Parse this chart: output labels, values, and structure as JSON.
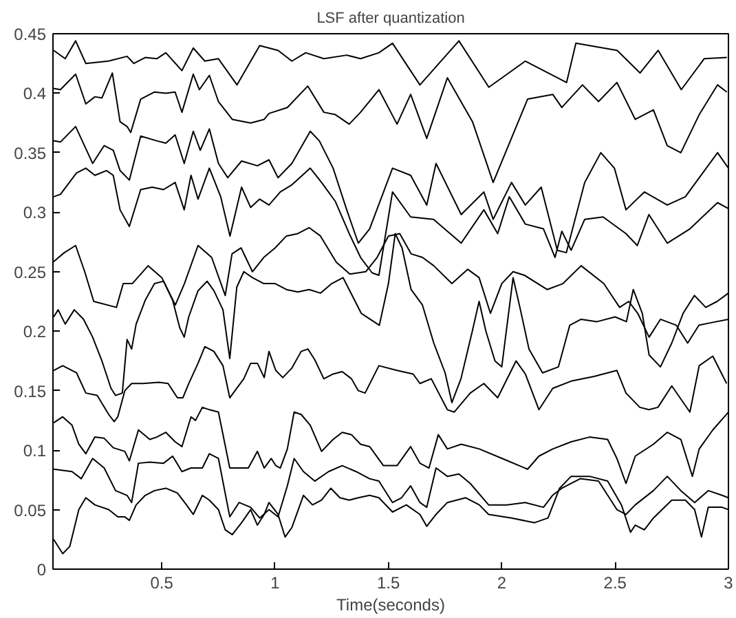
{
  "chart_data": {
    "type": "line",
    "title": "LSF after quantization",
    "xlabel": "Time(seconds)",
    "xlim": [
      0.02,
      3
    ],
    "ylim": [
      0,
      0.45
    ],
    "xticks": [
      0.5,
      1,
      1.5,
      2,
      2.5,
      3
    ],
    "yticks": [
      0,
      0.05,
      0.1,
      0.15,
      0.2,
      0.25,
      0.3,
      0.35,
      0.4,
      0.45
    ],
    "grid": false,
    "marker": "none",
    "line_style": "solid",
    "series": [
      {
        "color": "#000000",
        "x": [
          0.023,
          0.074,
          0.12,
          0.165,
          0.265,
          0.347,
          0.377,
          0.427,
          0.478,
          0.518,
          0.589,
          0.639,
          0.69,
          0.75,
          0.832,
          0.932,
          1.013,
          1.074,
          1.135,
          1.215,
          1.316,
          1.377,
          1.458,
          1.518,
          1.639,
          1.811,
          1.943,
          2.104,
          2.286,
          2.327,
          2.509,
          2.61,
          2.69,
          2.792,
          2.893,
          2.993
        ],
        "values": [
          0.436,
          0.429,
          0.444,
          0.425,
          0.427,
          0.431,
          0.425,
          0.43,
          0.429,
          0.434,
          0.419,
          0.438,
          0.427,
          0.429,
          0.407,
          0.44,
          0.436,
          0.427,
          0.434,
          0.429,
          0.432,
          0.429,
          0.434,
          0.442,
          0.407,
          0.444,
          0.405,
          0.427,
          0.409,
          0.442,
          0.436,
          0.417,
          0.436,
          0.403,
          0.429,
          0.43
        ]
      },
      {
        "color": "#000000",
        "x": [
          0.023,
          0.053,
          0.12,
          0.165,
          0.205,
          0.236,
          0.282,
          0.316,
          0.347,
          0.363,
          0.407,
          0.468,
          0.518,
          0.559,
          0.589,
          0.639,
          0.666,
          0.71,
          0.75,
          0.811,
          0.892,
          0.952,
          0.973,
          1.054,
          1.144,
          1.215,
          1.266,
          1.327,
          1.377,
          1.458,
          1.538,
          1.598,
          1.669,
          1.76,
          1.871,
          1.962,
          2.114,
          2.225,
          2.265,
          2.356,
          2.427,
          2.508,
          2.589,
          2.669,
          2.73,
          2.79,
          2.871,
          2.952,
          2.993
        ],
        "values": [
          0.404,
          0.403,
          0.416,
          0.391,
          0.397,
          0.396,
          0.417,
          0.376,
          0.372,
          0.367,
          0.395,
          0.401,
          0.4,
          0.401,
          0.384,
          0.416,
          0.403,
          0.415,
          0.393,
          0.378,
          0.375,
          0.378,
          0.383,
          0.388,
          0.406,
          0.384,
          0.382,
          0.374,
          0.384,
          0.403,
          0.374,
          0.399,
          0.362,
          0.413,
          0.376,
          0.325,
          0.395,
          0.399,
          0.388,
          0.407,
          0.393,
          0.409,
          0.378,
          0.386,
          0.356,
          0.35,
          0.382,
          0.407,
          0.401
        ]
      },
      {
        "color": "#000000",
        "x": [
          0.023,
          0.053,
          0.12,
          0.195,
          0.246,
          0.286,
          0.316,
          0.357,
          0.407,
          0.478,
          0.518,
          0.559,
          0.599,
          0.639,
          0.67,
          0.71,
          0.75,
          0.791,
          0.852,
          0.922,
          0.973,
          1.013,
          1.074,
          1.155,
          1.195,
          1.256,
          1.316,
          1.367,
          1.417,
          1.518,
          1.598,
          1.669,
          1.71,
          1.821,
          1.921,
          1.962,
          2.043,
          2.104,
          2.174,
          2.245,
          2.285,
          2.366,
          2.437,
          2.497,
          2.548,
          2.629,
          2.73,
          2.81,
          2.952,
          3.0
        ],
        "values": [
          0.36,
          0.359,
          0.372,
          0.341,
          0.356,
          0.352,
          0.335,
          0.327,
          0.364,
          0.36,
          0.358,
          0.365,
          0.341,
          0.368,
          0.352,
          0.37,
          0.341,
          0.329,
          0.343,
          0.339,
          0.344,
          0.329,
          0.341,
          0.368,
          0.36,
          0.337,
          0.302,
          0.274,
          0.286,
          0.337,
          0.331,
          0.306,
          0.341,
          0.298,
          0.317,
          0.294,
          0.325,
          0.306,
          0.321,
          0.268,
          0.266,
          0.325,
          0.35,
          0.337,
          0.302,
          0.317,
          0.306,
          0.313,
          0.35,
          0.337
        ]
      },
      {
        "color": "#000000",
        "x": [
          0.023,
          0.053,
          0.124,
          0.165,
          0.205,
          0.256,
          0.286,
          0.316,
          0.357,
          0.407,
          0.458,
          0.508,
          0.559,
          0.599,
          0.629,
          0.66,
          0.71,
          0.76,
          0.801,
          0.852,
          0.892,
          0.932,
          0.973,
          1.023,
          1.074,
          1.155,
          1.205,
          1.266,
          1.327,
          1.377,
          1.428,
          1.458,
          1.518,
          1.598,
          1.699,
          1.821,
          1.921,
          1.982,
          2.033,
          2.104,
          2.184,
          2.235,
          2.265,
          2.306,
          2.366,
          2.447,
          2.548,
          2.598,
          2.649,
          2.73,
          2.83,
          2.952,
          3.0
        ],
        "values": [
          0.313,
          0.315,
          0.333,
          0.337,
          0.331,
          0.335,
          0.331,
          0.302,
          0.288,
          0.319,
          0.321,
          0.319,
          0.325,
          0.302,
          0.331,
          0.311,
          0.337,
          0.313,
          0.28,
          0.321,
          0.304,
          0.311,
          0.306,
          0.317,
          0.323,
          0.337,
          0.325,
          0.309,
          0.282,
          0.262,
          0.249,
          0.247,
          0.317,
          0.296,
          0.294,
          0.274,
          0.302,
          0.282,
          0.313,
          0.29,
          0.286,
          0.262,
          0.284,
          0.268,
          0.294,
          0.296,
          0.282,
          0.272,
          0.298,
          0.274,
          0.286,
          0.308,
          0.303
        ]
      },
      {
        "color": "#000000",
        "x": [
          0.02,
          0.07,
          0.12,
          0.16,
          0.2,
          0.3,
          0.33,
          0.37,
          0.44,
          0.5,
          0.56,
          0.6,
          0.66,
          0.72,
          0.78,
          0.81,
          0.85,
          0.9,
          0.95,
          1.0,
          1.05,
          1.1,
          1.15,
          1.2,
          1.27,
          1.33,
          1.4,
          1.45,
          1.5,
          1.55,
          1.6,
          1.65,
          1.7,
          1.78,
          1.85,
          1.9,
          1.95,
          2.0,
          2.05,
          2.1,
          2.2,
          2.27,
          2.35,
          2.45,
          2.52,
          2.56,
          2.6,
          2.65,
          2.7,
          2.77,
          2.82,
          2.87,
          2.92,
          3.0
        ],
        "values": [
          0.258,
          0.266,
          0.272,
          0.25,
          0.225,
          0.22,
          0.24,
          0.24,
          0.255,
          0.245,
          0.222,
          0.24,
          0.272,
          0.262,
          0.23,
          0.265,
          0.27,
          0.25,
          0.262,
          0.27,
          0.28,
          0.282,
          0.287,
          0.28,
          0.258,
          0.248,
          0.25,
          0.262,
          0.28,
          0.282,
          0.265,
          0.262,
          0.255,
          0.24,
          0.252,
          0.245,
          0.215,
          0.24,
          0.25,
          0.247,
          0.235,
          0.24,
          0.255,
          0.24,
          0.22,
          0.225,
          0.215,
          0.195,
          0.21,
          0.205,
          0.19,
          0.205,
          0.207,
          0.21
        ]
      },
      {
        "color": "#000000",
        "x": [
          0.023,
          0.043,
          0.074,
          0.114,
          0.155,
          0.195,
          0.236,
          0.276,
          0.296,
          0.326,
          0.347,
          0.367,
          0.387,
          0.427,
          0.468,
          0.508,
          0.548,
          0.579,
          0.599,
          0.619,
          0.66,
          0.7,
          0.73,
          0.77,
          0.8,
          0.831,
          0.862,
          0.9,
          0.95,
          1.0,
          1.05,
          1.1,
          1.15,
          1.2,
          1.25,
          1.3,
          1.38,
          1.46,
          1.5,
          1.53,
          1.56,
          1.6,
          1.65,
          1.7,
          1.75,
          1.78,
          1.82,
          1.87,
          1.9,
          1.93,
          1.97,
          2.0,
          2.05,
          2.08,
          2.12,
          2.18,
          2.25,
          2.3,
          2.35,
          2.42,
          2.5,
          2.55,
          2.58,
          2.62,
          2.65,
          2.7,
          2.75,
          2.8,
          2.85,
          2.9,
          2.95,
          3.0
        ],
        "values": [
          0.212,
          0.218,
          0.206,
          0.218,
          0.21,
          0.195,
          0.175,
          0.152,
          0.146,
          0.148,
          0.193,
          0.185,
          0.206,
          0.226,
          0.24,
          0.242,
          0.226,
          0.203,
          0.195,
          0.212,
          0.234,
          0.242,
          0.234,
          0.218,
          0.177,
          0.237,
          0.25,
          0.245,
          0.24,
          0.24,
          0.235,
          0.233,
          0.235,
          0.232,
          0.24,
          0.245,
          0.215,
          0.205,
          0.24,
          0.282,
          0.27,
          0.235,
          0.222,
          0.19,
          0.165,
          0.14,
          0.16,
          0.2,
          0.225,
          0.2,
          0.175,
          0.17,
          0.245,
          0.22,
          0.185,
          0.165,
          0.17,
          0.205,
          0.21,
          0.208,
          0.212,
          0.208,
          0.235,
          0.215,
          0.18,
          0.17,
          0.19,
          0.215,
          0.23,
          0.22,
          0.225,
          0.232
        ]
      },
      {
        "color": "#000000",
        "x": [
          0.023,
          0.063,
          0.104,
          0.124,
          0.165,
          0.215,
          0.266,
          0.29,
          0.306,
          0.337,
          0.367,
          0.417,
          0.488,
          0.528,
          0.569,
          0.593,
          0.619,
          0.66,
          0.69,
          0.73,
          0.77,
          0.8,
          0.831,
          0.862,
          0.892,
          0.922,
          0.952,
          0.973,
          1.003,
          1.034,
          1.074,
          1.115,
          1.145,
          1.175,
          1.215,
          1.256,
          1.296,
          1.337,
          1.367,
          1.397,
          1.458,
          1.538,
          1.609,
          1.639,
          1.689,
          1.76,
          1.79,
          1.861,
          1.921,
          1.982,
          2.063,
          2.104,
          2.164,
          2.225,
          2.306,
          2.407,
          2.508,
          2.548,
          2.609,
          2.649,
          2.689,
          2.75,
          2.83,
          2.871,
          2.931,
          2.992
        ],
        "values": [
          0.167,
          0.171,
          0.167,
          0.165,
          0.148,
          0.146,
          0.13,
          0.124,
          0.128,
          0.15,
          0.156,
          0.156,
          0.157,
          0.156,
          0.144,
          0.144,
          0.156,
          0.173,
          0.187,
          0.183,
          0.171,
          0.144,
          0.152,
          0.16,
          0.173,
          0.173,
          0.161,
          0.183,
          0.167,
          0.161,
          0.169,
          0.183,
          0.185,
          0.176,
          0.16,
          0.164,
          0.166,
          0.16,
          0.15,
          0.148,
          0.171,
          0.167,
          0.164,
          0.156,
          0.16,
          0.134,
          0.132,
          0.148,
          0.156,
          0.144,
          0.175,
          0.164,
          0.134,
          0.152,
          0.158,
          0.162,
          0.167,
          0.148,
          0.136,
          0.134,
          0.136,
          0.154,
          0.132,
          0.171,
          0.179,
          0.156
        ]
      },
      {
        "color": "#000000",
        "x": [
          0.023,
          0.063,
          0.104,
          0.134,
          0.165,
          0.205,
          0.246,
          0.286,
          0.337,
          0.357,
          0.397,
          0.447,
          0.478,
          0.518,
          0.559,
          0.589,
          0.629,
          0.649,
          0.679,
          0.71,
          0.75,
          0.8,
          0.852,
          0.882,
          0.922,
          0.952,
          0.983,
          1.003,
          1.023,
          1.054,
          1.084,
          1.115,
          1.155,
          1.205,
          1.256,
          1.296,
          1.337,
          1.377,
          1.417,
          1.478,
          1.538,
          1.598,
          1.639,
          1.679,
          1.72,
          1.76,
          1.821,
          1.901,
          2.002,
          2.114,
          2.164,
          2.225,
          2.306,
          2.387,
          2.467,
          2.508,
          2.548,
          2.589,
          2.669,
          2.73,
          2.79,
          2.841,
          2.871,
          2.931,
          3.0
        ],
        "values": [
          0.123,
          0.128,
          0.121,
          0.105,
          0.097,
          0.111,
          0.11,
          0.102,
          0.099,
          0.091,
          0.117,
          0.109,
          0.111,
          0.115,
          0.107,
          0.103,
          0.128,
          0.125,
          0.136,
          0.134,
          0.132,
          0.085,
          0.085,
          0.085,
          0.099,
          0.085,
          0.093,
          0.087,
          0.085,
          0.101,
          0.132,
          0.13,
          0.121,
          0.099,
          0.109,
          0.115,
          0.113,
          0.105,
          0.103,
          0.087,
          0.087,
          0.103,
          0.089,
          0.085,
          0.113,
          0.101,
          0.105,
          0.101,
          0.093,
          0.084,
          0.095,
          0.101,
          0.107,
          0.111,
          0.109,
          0.093,
          0.072,
          0.095,
          0.105,
          0.115,
          0.109,
          0.078,
          0.101,
          0.117,
          0.132
        ]
      },
      {
        "color": "#000000",
        "x": [
          0.023,
          0.104,
          0.145,
          0.195,
          0.246,
          0.296,
          0.347,
          0.367,
          0.397,
          0.447,
          0.508,
          0.548,
          0.589,
          0.629,
          0.679,
          0.71,
          0.75,
          0.8,
          0.841,
          0.892,
          0.932,
          0.973,
          1.013,
          1.054,
          1.084,
          1.125,
          1.175,
          1.236,
          1.296,
          1.357,
          1.417,
          1.458,
          1.518,
          1.558,
          1.598,
          1.639,
          1.669,
          1.71,
          1.76,
          1.811,
          1.861,
          1.942,
          2.022,
          2.103,
          2.184,
          2.224,
          2.265,
          2.346,
          2.427,
          2.508,
          2.548,
          2.589,
          2.669,
          2.73,
          2.79,
          2.851,
          2.911,
          2.972,
          3.0
        ],
        "values": [
          0.084,
          0.082,
          0.076,
          0.093,
          0.085,
          0.066,
          0.062,
          0.056,
          0.089,
          0.09,
          0.089,
          0.095,
          0.082,
          0.085,
          0.085,
          0.097,
          0.093,
          0.044,
          0.056,
          0.052,
          0.043,
          0.05,
          0.044,
          0.07,
          0.093,
          0.082,
          0.074,
          0.082,
          0.087,
          0.082,
          0.076,
          0.074,
          0.056,
          0.06,
          0.07,
          0.056,
          0.052,
          0.085,
          0.078,
          0.08,
          0.072,
          0.054,
          0.054,
          0.056,
          0.052,
          0.062,
          0.068,
          0.076,
          0.074,
          0.05,
          0.046,
          0.054,
          0.066,
          0.078,
          0.066,
          0.056,
          0.066,
          0.062,
          0.06
        ]
      },
      {
        "color": "#000000",
        "x": [
          0.023,
          0.063,
          0.094,
          0.134,
          0.165,
          0.205,
          0.266,
          0.306,
          0.337,
          0.357,
          0.387,
          0.427,
          0.468,
          0.518,
          0.569,
          0.609,
          0.639,
          0.679,
          0.71,
          0.75,
          0.78,
          0.811,
          0.852,
          0.892,
          0.922,
          0.952,
          0.973,
          1.013,
          1.044,
          1.074,
          1.125,
          1.165,
          1.205,
          1.246,
          1.286,
          1.327,
          1.367,
          1.417,
          1.458,
          1.518,
          1.579,
          1.639,
          1.669,
          1.71,
          1.76,
          1.841,
          1.901,
          1.942,
          2.043,
          2.144,
          2.204,
          2.255,
          2.306,
          2.387,
          2.467,
          2.528,
          2.568,
          2.589,
          2.629,
          2.669,
          2.75,
          2.81,
          2.851,
          2.881,
          2.911,
          2.972,
          3.0
        ],
        "values": [
          0.025,
          0.013,
          0.019,
          0.05,
          0.06,
          0.054,
          0.05,
          0.044,
          0.044,
          0.041,
          0.054,
          0.062,
          0.066,
          0.068,
          0.064,
          0.054,
          0.046,
          0.062,
          0.058,
          0.05,
          0.033,
          0.029,
          0.039,
          0.05,
          0.037,
          0.046,
          0.056,
          0.046,
          0.027,
          0.035,
          0.062,
          0.054,
          0.058,
          0.068,
          0.06,
          0.058,
          0.06,
          0.062,
          0.06,
          0.048,
          0.054,
          0.046,
          0.036,
          0.046,
          0.056,
          0.06,
          0.054,
          0.046,
          0.043,
          0.039,
          0.043,
          0.068,
          0.078,
          0.078,
          0.074,
          0.054,
          0.031,
          0.037,
          0.033,
          0.043,
          0.058,
          0.058,
          0.05,
          0.027,
          0.052,
          0.052,
          0.05
        ]
      }
    ]
  }
}
